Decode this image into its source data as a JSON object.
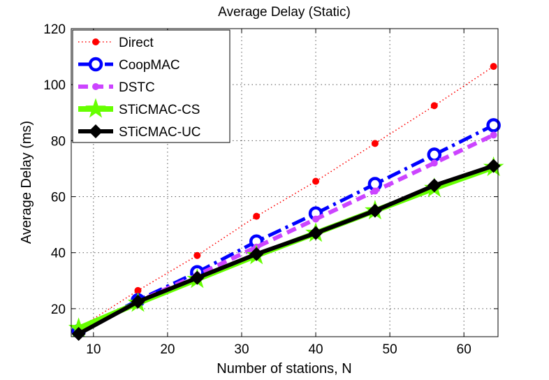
{
  "chart_data": {
    "type": "line",
    "title": "Average Delay (Static)",
    "xlabel": "Number of stations, N",
    "ylabel": "Average Delay (ms)",
    "xlim": [
      7,
      64.6
    ],
    "ylim": [
      10,
      120
    ],
    "xticks": [
      10,
      20,
      30,
      40,
      50,
      60
    ],
    "yticks": [
      20,
      40,
      60,
      80,
      100,
      120
    ],
    "grid": true,
    "legend_position": "top-left",
    "x": [
      8,
      16,
      24,
      32,
      40,
      48,
      56,
      64
    ],
    "series": [
      {
        "name": "Direct",
        "values": [
          13,
          26.5,
          39,
          53,
          65.5,
          79,
          92.5,
          106.5
        ],
        "color": "#ff0000",
        "marker": "dot",
        "style": "dotted"
      },
      {
        "name": "CoopMAC",
        "values": [
          12,
          23,
          33,
          44,
          54,
          64.5,
          75,
          85.5
        ],
        "color": "#0000ff",
        "marker": "circle",
        "style": "dashdot"
      },
      {
        "name": "DSTC",
        "values": [
          12,
          22.5,
          32,
          42,
          52,
          62,
          72,
          82
        ],
        "color": "#cc44ff",
        "marker": "dot",
        "style": "dashed"
      },
      {
        "name": "STiCMAC-CS",
        "values": [
          13,
          22,
          30.5,
          39,
          47,
          55,
          63,
          70.5
        ],
        "color": "#66ff00",
        "marker": "star",
        "style": "solid"
      },
      {
        "name": "STiCMAC-UC",
        "values": [
          11,
          22.5,
          31,
          39.5,
          47,
          55,
          64,
          71
        ],
        "color": "#000000",
        "marker": "diamond",
        "style": "solid"
      }
    ]
  }
}
